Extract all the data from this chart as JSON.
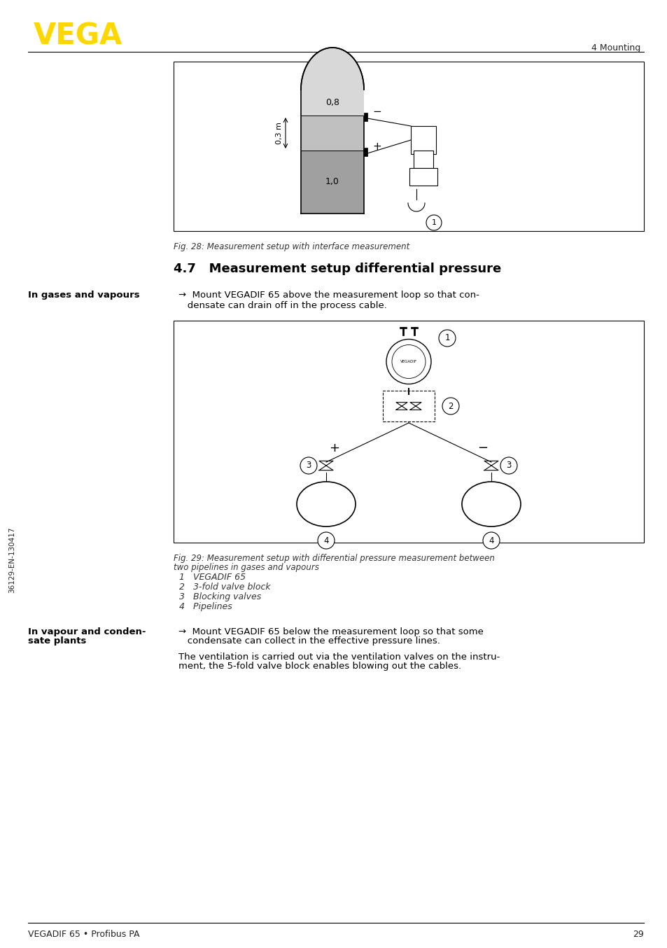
{
  "page_bg": "#ffffff",
  "vega_logo_text": "VEGA",
  "vega_logo_color": "#FFD700",
  "header_right_text": "4 Mounting",
  "footer_left_text": "VEGADIF 65 • Profibus PA",
  "footer_right_text": "29",
  "sidebar_text": "36129-EN-130417",
  "fig28_caption": "Fig. 28: Measurement setup with interface measurement",
  "section_title": "4.7   Measurement setup differential pressure",
  "left_label1": "In gases and vapours",
  "arrow_text1_line1": "→  Mount VEGADIF 65 above the measurement loop so that con-",
  "arrow_text1_line2": "   densate can drain off in the process cable.",
  "fig29_caption_line1": "Fig. 29: Measurement setup with differential pressure measurement between",
  "fig29_caption_line2": "two pipelines in gases and vapours",
  "legend_items": [
    "1   VEGADIF 65",
    "2   3-fold valve block",
    "3   Blocking valves",
    "4   Pipelines"
  ],
  "left_label2_line1": "In vapour and conden-",
  "left_label2_line2": "sate plants",
  "arrow_text2_line1": "→  Mount VEGADIF 65 below the measurement loop so that some",
  "arrow_text2_line2": "   condensate can collect in the effective pressure lines.",
  "body_text2_line1": "The ventilation is carried out via the ventilation valves on the instru-",
  "body_text2_line2": "ment, the 5-fold valve block enables blowing out the cables.",
  "body_font_size": 9.5,
  "caption_font_size": 8.5,
  "legend_font_size": 9,
  "label_font_size": 9.5,
  "section_title_size": 13
}
